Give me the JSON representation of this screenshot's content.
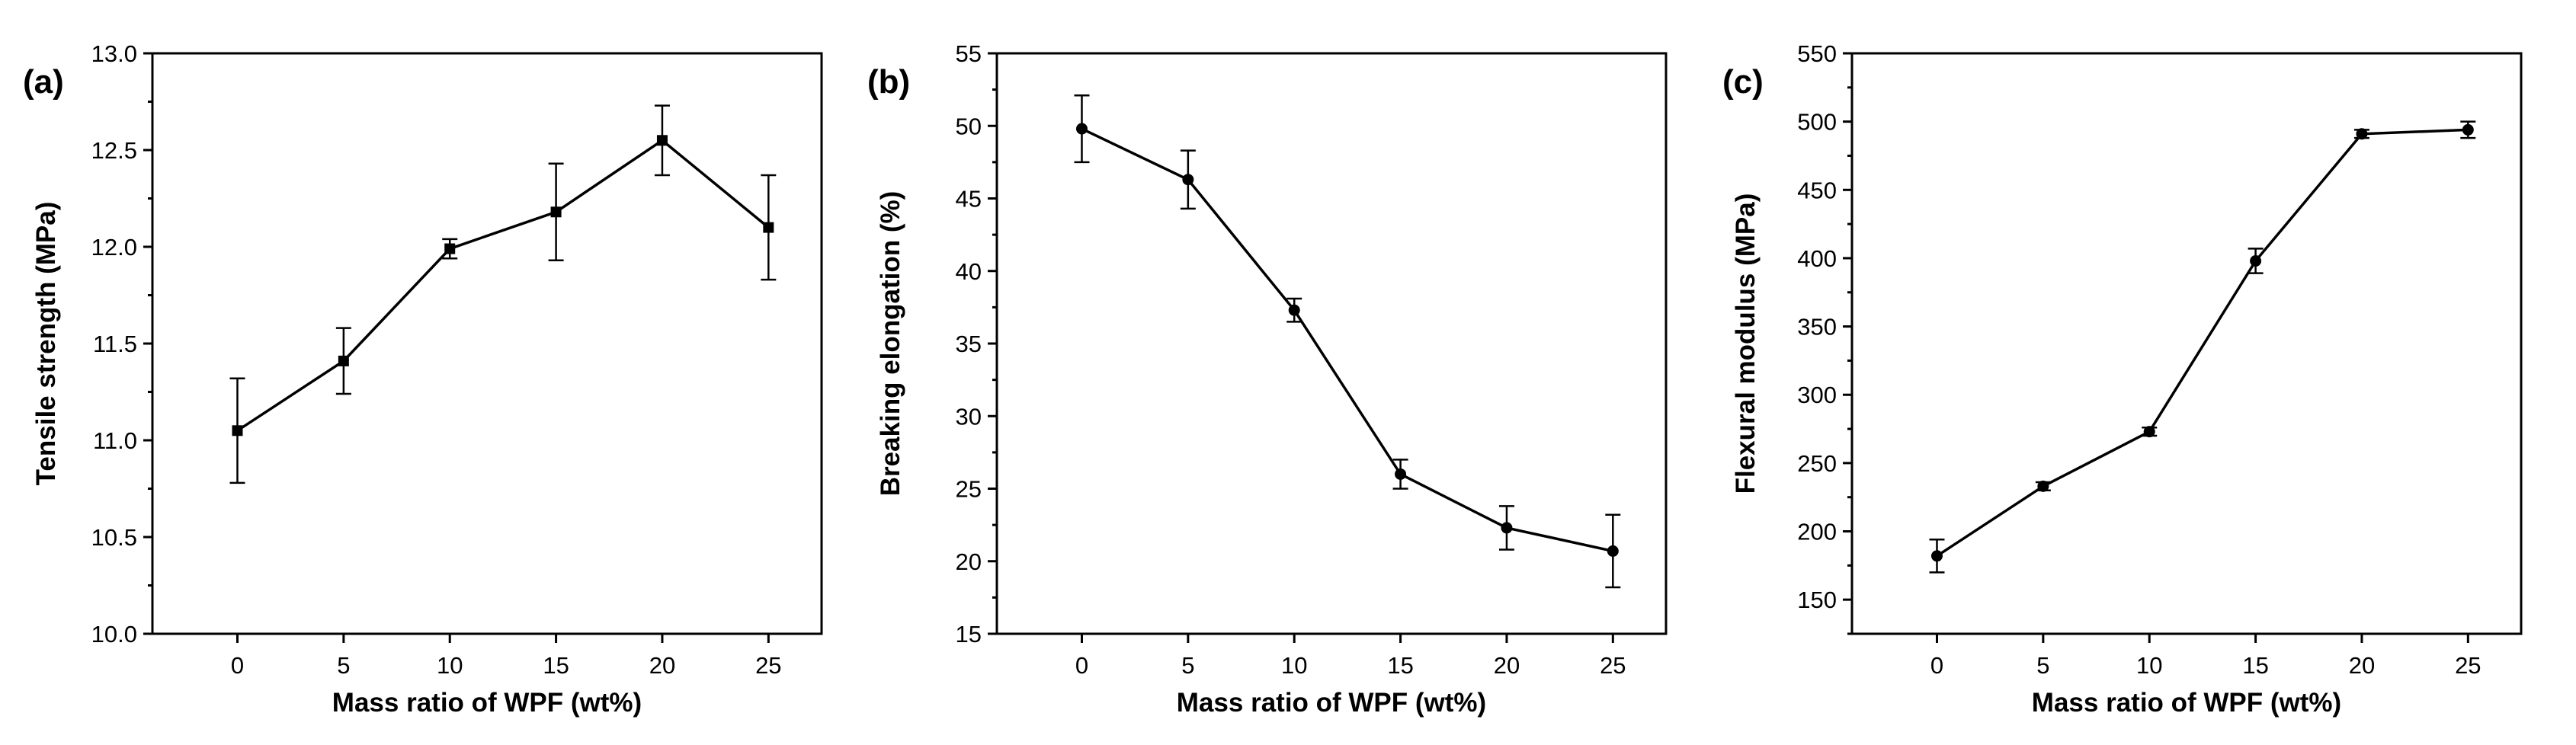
{
  "chart_data": [
    {
      "type": "line",
      "panel_label": "(a)",
      "xlabel": "Mass ratio of WPF (wt%)",
      "ylabel": "Tensile strength (MPa)",
      "x": [
        0,
        5,
        10,
        15,
        20,
        25
      ],
      "xticks": [
        0,
        5,
        10,
        15,
        20,
        25
      ],
      "xlim": [
        -4,
        27.5
      ],
      "ylim": [
        10.0,
        13.0
      ],
      "yticks": [
        10.0,
        10.5,
        11.0,
        11.5,
        12.0,
        12.5,
        13.0
      ],
      "ytick_labels": [
        "10.0",
        "10.5",
        "11.0",
        "11.5",
        "12.0",
        "12.5",
        "13.0"
      ],
      "marker": "square",
      "series": [
        {
          "values": [
            11.05,
            11.41,
            11.99,
            12.18,
            12.55,
            12.1
          ],
          "errors": [
            0.27,
            0.17,
            0.05,
            0.25,
            0.18,
            0.27
          ]
        }
      ],
      "grid": false
    },
    {
      "type": "line",
      "panel_label": "(b)",
      "xlabel": "Mass ratio of WPF (wt%)",
      "ylabel": "Breaking elongation (%)",
      "x": [
        0,
        5,
        10,
        15,
        20,
        25
      ],
      "xticks": [
        0,
        5,
        10,
        15,
        20,
        25
      ],
      "xlim": [
        -4,
        27.5
      ],
      "ylim": [
        15,
        55
      ],
      "yticks": [
        15,
        20,
        25,
        30,
        35,
        40,
        45,
        50,
        55
      ],
      "ytick_labels": [
        "15",
        "20",
        "25",
        "30",
        "35",
        "40",
        "45",
        "50",
        "55"
      ],
      "marker": "circle",
      "series": [
        {
          "values": [
            49.8,
            46.3,
            37.3,
            26.0,
            22.3,
            20.7
          ],
          "errors": [
            2.3,
            2.0,
            0.8,
            1.0,
            1.5,
            2.5
          ]
        }
      ],
      "grid": false
    },
    {
      "type": "line",
      "panel_label": "(c)",
      "xlabel": "Mass ratio of WPF (wt%)",
      "ylabel": "Flexural modulus (MPa)",
      "x": [
        0,
        5,
        10,
        15,
        20,
        25
      ],
      "xticks": [
        0,
        5,
        10,
        15,
        20,
        25
      ],
      "xlim": [
        -4,
        27.5
      ],
      "ylim": [
        125,
        550
      ],
      "yticks": [
        150,
        200,
        250,
        300,
        350,
        400,
        450,
        500,
        550
      ],
      "ytick_labels": [
        "150",
        "200",
        "250",
        "300",
        "350",
        "400",
        "450",
        "500",
        "550"
      ],
      "marker": "circle",
      "series": [
        {
          "values": [
            182,
            233,
            273,
            398,
            491,
            494
          ],
          "errors": [
            12,
            3,
            3,
            9,
            3,
            6
          ]
        }
      ],
      "grid": false
    }
  ]
}
